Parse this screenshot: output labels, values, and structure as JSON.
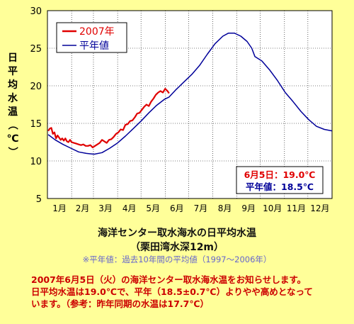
{
  "chart_data": {
    "type": "line",
    "ylabel": "日平均水温（℃）",
    "ylim": [
      5,
      30
    ],
    "yticks": [
      5,
      10,
      15,
      20,
      25,
      30
    ],
    "x_tick_labels": [
      "1月",
      "2月",
      "3月",
      "4月",
      "5月",
      "6月",
      "7月",
      "8月",
      "9月",
      "10月",
      "11月",
      "12月"
    ],
    "grid": true,
    "legend": "top-left",
    "series": [
      {
        "name": "2007年",
        "color": "#e00000",
        "points": [
          [
            1,
            14.0
          ],
          [
            3,
            14.3
          ],
          [
            5,
            14.4
          ],
          [
            7,
            13.6
          ],
          [
            9,
            13.8
          ],
          [
            11,
            13.0
          ],
          [
            13,
            13.4
          ],
          [
            15,
            13.1
          ],
          [
            17,
            12.8
          ],
          [
            19,
            13.0
          ],
          [
            21,
            12.7
          ],
          [
            23,
            13.0
          ],
          [
            25,
            12.6
          ],
          [
            27,
            12.5
          ],
          [
            29,
            12.8
          ],
          [
            31,
            12.5
          ],
          [
            34,
            12.4
          ],
          [
            37,
            12.3
          ],
          [
            40,
            12.2
          ],
          [
            43,
            12.1
          ],
          [
            46,
            12.2
          ],
          [
            49,
            12.0
          ],
          [
            52,
            12.0
          ],
          [
            55,
            12.1
          ],
          [
            58,
            11.8
          ],
          [
            61,
            12.0
          ],
          [
            64,
            12.2
          ],
          [
            67,
            12.4
          ],
          [
            70,
            12.8
          ],
          [
            73,
            12.6
          ],
          [
            76,
            12.4
          ],
          [
            79,
            12.8
          ],
          [
            82,
            12.9
          ],
          [
            85,
            13.2
          ],
          [
            88,
            13.6
          ],
          [
            91,
            13.8
          ],
          [
            94,
            14.2
          ],
          [
            97,
            14.1
          ],
          [
            100,
            14.8
          ],
          [
            103,
            14.9
          ],
          [
            106,
            15.3
          ],
          [
            109,
            15.4
          ],
          [
            112,
            15.8
          ],
          [
            115,
            16.3
          ],
          [
            118,
            16.4
          ],
          [
            121,
            16.8
          ],
          [
            124,
            17.2
          ],
          [
            127,
            17.5
          ],
          [
            130,
            17.3
          ],
          [
            133,
            17.9
          ],
          [
            136,
            18.3
          ],
          [
            139,
            18.8
          ],
          [
            142,
            19.1
          ],
          [
            145,
            19.3
          ],
          [
            148,
            19.1
          ],
          [
            151,
            19.6
          ],
          [
            154,
            19.3
          ],
          [
            156,
            19.0
          ]
        ]
      },
      {
        "name": "平年値",
        "color": "#000099",
        "points": [
          [
            1,
            13.5
          ],
          [
            10,
            12.8
          ],
          [
            20,
            12.2
          ],
          [
            30,
            11.7
          ],
          [
            40,
            11.2
          ],
          [
            50,
            11.0
          ],
          [
            60,
            10.9
          ],
          [
            70,
            11.1
          ],
          [
            80,
            11.7
          ],
          [
            90,
            12.4
          ],
          [
            100,
            13.3
          ],
          [
            110,
            14.3
          ],
          [
            120,
            15.3
          ],
          [
            130,
            16.4
          ],
          [
            140,
            17.4
          ],
          [
            150,
            18.2
          ],
          [
            156,
            18.5
          ],
          [
            165,
            19.5
          ],
          [
            175,
            20.5
          ],
          [
            185,
            21.5
          ],
          [
            195,
            22.7
          ],
          [
            205,
            24.2
          ],
          [
            215,
            25.6
          ],
          [
            225,
            26.6
          ],
          [
            232,
            27.0
          ],
          [
            240,
            27.0
          ],
          [
            248,
            26.6
          ],
          [
            256,
            25.9
          ],
          [
            262,
            25.0
          ],
          [
            266,
            23.9
          ],
          [
            275,
            23.3
          ],
          [
            285,
            22.1
          ],
          [
            295,
            20.7
          ],
          [
            305,
            19.1
          ],
          [
            315,
            17.9
          ],
          [
            325,
            16.6
          ],
          [
            335,
            15.5
          ],
          [
            345,
            14.6
          ],
          [
            355,
            14.2
          ],
          [
            365,
            14.0
          ]
        ]
      }
    ],
    "annotation": {
      "date_text": "6月5日：19.0℃",
      "normal_text": "平年値：18.5℃"
    }
  },
  "caption": {
    "title1": "海洋センター取水海水の日平均水温",
    "title2": "（栗田湾水深12m）",
    "note": "※平年値：過去10年間の平均値（1997～2006年）"
  },
  "notice": {
    "line1": "2007年6月5日（火）の海洋センター取水海水温をお知らせします。",
    "line2": "日平均水温は19.0℃で、平年（18.5±0.7℃）よりやや高めとなって",
    "line3": "います。（参考：昨年同期の水温は17.7℃）"
  }
}
